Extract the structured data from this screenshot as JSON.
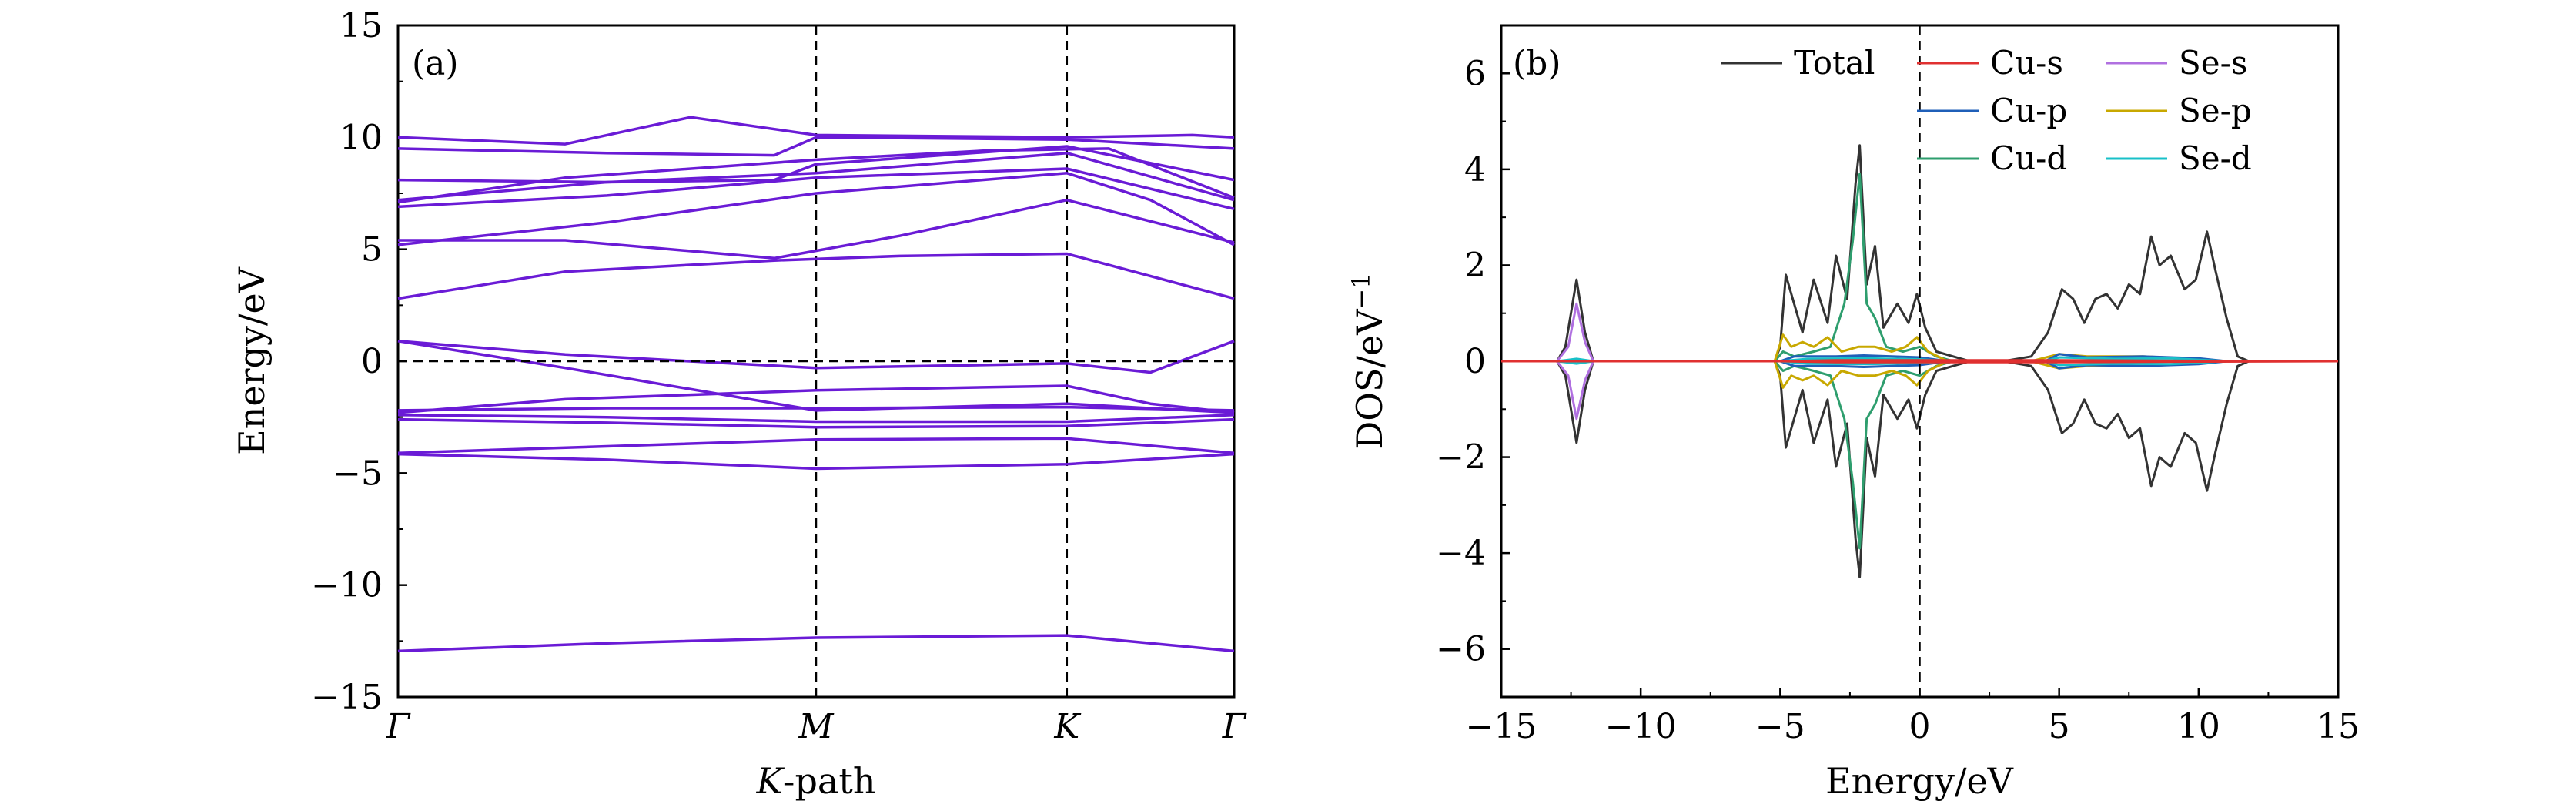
{
  "chart_data": [
    {
      "panel": "(a)",
      "type": "line",
      "title": "",
      "xlabel": "K-path",
      "xlabel_italic": "K",
      "xlabel_rest": "-path",
      "ylabel": "Energy/eV",
      "ylim": [
        -15,
        15
      ],
      "yticks": [
        -15,
        -10,
        -5,
        0,
        5,
        10,
        15
      ],
      "ytick_labels": [
        "−15",
        "−10",
        "−5",
        "0",
        "5",
        "10",
        "15"
      ],
      "kpoints": [
        {
          "label": "Γ",
          "pos": 0.0
        },
        {
          "label": "M",
          "pos": 0.5
        },
        {
          "label": "K",
          "pos": 0.8
        },
        {
          "label": "Γ",
          "pos": 1.0
        }
      ],
      "fermi_level": 0,
      "color": "#6a1bd6",
      "bands": [
        [
          [
            0,
            -12.95
          ],
          [
            0.25,
            -12.6
          ],
          [
            0.5,
            -12.35
          ],
          [
            0.8,
            -12.25
          ],
          [
            0.9,
            -12.6
          ],
          [
            1,
            -12.95
          ]
        ],
        [
          [
            0,
            -4.15
          ],
          [
            0.25,
            -4.4
          ],
          [
            0.5,
            -4.8
          ],
          [
            0.65,
            -4.7
          ],
          [
            0.8,
            -4.6
          ],
          [
            1,
            -4.15
          ]
        ],
        [
          [
            0,
            -4.1
          ],
          [
            0.25,
            -3.8
          ],
          [
            0.5,
            -3.5
          ],
          [
            0.8,
            -3.45
          ],
          [
            1,
            -4.1
          ]
        ],
        [
          [
            0,
            -2.6
          ],
          [
            0.25,
            -2.75
          ],
          [
            0.5,
            -2.95
          ],
          [
            0.8,
            -2.9
          ],
          [
            1,
            -2.6
          ]
        ],
        [
          [
            0,
            -2.4
          ],
          [
            0.25,
            -2.5
          ],
          [
            0.5,
            -2.7
          ],
          [
            0.8,
            -2.7
          ],
          [
            1,
            -2.4
          ]
        ],
        [
          [
            0,
            -2.3
          ],
          [
            0.2,
            -1.7
          ],
          [
            0.5,
            -1.3
          ],
          [
            0.8,
            -1.1
          ],
          [
            0.9,
            -1.9
          ],
          [
            1,
            -2.3
          ]
        ],
        [
          [
            0,
            -2.2
          ],
          [
            0.25,
            -2.1
          ],
          [
            0.5,
            -2.1
          ],
          [
            0.8,
            -2.05
          ],
          [
            1,
            -2.2
          ]
        ],
        [
          [
            0,
            0.9
          ],
          [
            0.2,
            -0.3
          ],
          [
            0.5,
            -2.2
          ],
          [
            0.8,
            -1.9
          ],
          [
            1,
            -2.3
          ]
        ],
        [
          [
            0,
            0.9
          ],
          [
            0.2,
            0.3
          ],
          [
            0.5,
            -0.3
          ],
          [
            0.8,
            -0.1
          ],
          [
            0.9,
            -0.5
          ],
          [
            1,
            0.9
          ]
        ],
        [
          [
            0,
            2.8
          ],
          [
            0.2,
            4.0
          ],
          [
            0.45,
            4.5
          ],
          [
            0.6,
            4.7
          ],
          [
            0.8,
            4.8
          ],
          [
            1,
            2.8
          ]
        ],
        [
          [
            0,
            5.4
          ],
          [
            0.2,
            5.4
          ],
          [
            0.45,
            4.6
          ],
          [
            0.6,
            5.6
          ],
          [
            0.8,
            7.2
          ],
          [
            1,
            5.3
          ]
        ],
        [
          [
            0,
            5.2
          ],
          [
            0.25,
            6.2
          ],
          [
            0.5,
            7.5
          ],
          [
            0.8,
            8.4
          ],
          [
            0.9,
            7.2
          ],
          [
            1,
            5.2
          ]
        ],
        [
          [
            0,
            6.9
          ],
          [
            0.25,
            7.4
          ],
          [
            0.5,
            8.2
          ],
          [
            0.8,
            8.6
          ],
          [
            1,
            6.8
          ]
        ],
        [
          [
            0,
            7.2
          ],
          [
            0.25,
            8.0
          ],
          [
            0.5,
            8.4
          ],
          [
            0.8,
            9.3
          ],
          [
            1,
            7.2
          ]
        ],
        [
          [
            0,
            7.1
          ],
          [
            0.2,
            8.2
          ],
          [
            0.5,
            9.0
          ],
          [
            0.7,
            9.4
          ],
          [
            0.85,
            9.5
          ],
          [
            1,
            7.3
          ]
        ],
        [
          [
            0,
            8.1
          ],
          [
            0.25,
            8.0
          ],
          [
            0.45,
            8.1
          ],
          [
            0.5,
            8.8
          ],
          [
            0.8,
            9.6
          ],
          [
            1,
            8.1
          ]
        ],
        [
          [
            0,
            9.5
          ],
          [
            0.25,
            9.3
          ],
          [
            0.45,
            9.2
          ],
          [
            0.5,
            10.0
          ],
          [
            0.8,
            9.9
          ],
          [
            1,
            9.5
          ]
        ],
        [
          [
            0,
            10.0
          ],
          [
            0.2,
            9.7
          ],
          [
            0.35,
            10.9
          ],
          [
            0.5,
            10.1
          ],
          [
            0.8,
            10.0
          ],
          [
            0.95,
            10.1
          ],
          [
            1,
            10.0
          ]
        ]
      ]
    },
    {
      "panel": "(b)",
      "type": "line",
      "title": "",
      "xlabel": "Energy/eV",
      "ylabel": "DOS/eV",
      "ylabel_sup": "−1",
      "xlim": [
        -15,
        15
      ],
      "ylim": [
        -7,
        7
      ],
      "xticks": [
        -15,
        -10,
        -5,
        0,
        5,
        10,
        15
      ],
      "xtick_labels": [
        "−15",
        "−10",
        "−5",
        "0",
        "5",
        "10",
        "15"
      ],
      "yticks": [
        -6,
        -4,
        -2,
        0,
        2,
        4,
        6
      ],
      "ytick_labels": [
        "−6",
        "−4",
        "−2",
        "0",
        "2",
        "4",
        "6"
      ],
      "fermi_level": 0,
      "legend": [
        {
          "name": "Total",
          "color": "#333333"
        },
        {
          "name": "Cu-s",
          "color": "#e03030"
        },
        {
          "name": "Se-s",
          "color": "#b070e0"
        },
        {
          "name": "Cu-p",
          "color": "#1f5fb8"
        },
        {
          "name": "Se-p",
          "color": "#c8a800"
        },
        {
          "name": "Cu-d",
          "color": "#2e9e6e"
        },
        {
          "name": "Se-d",
          "color": "#18c0c8"
        }
      ],
      "series": [
        {
          "name": "Total",
          "color": "#333333",
          "points": [
            [
              -15,
              0
            ],
            [
              -13,
              0
            ],
            [
              -12.7,
              0.3
            ],
            [
              -12.3,
              1.7
            ],
            [
              -12,
              0.6
            ],
            [
              -11.7,
              0
            ],
            [
              -5.2,
              0
            ],
            [
              -5,
              0.3
            ],
            [
              -4.8,
              1.8
            ],
            [
              -4.5,
              1.2
            ],
            [
              -4.2,
              0.6
            ],
            [
              -3.8,
              1.7
            ],
            [
              -3.3,
              0.8
            ],
            [
              -3,
              2.2
            ],
            [
              -2.6,
              1.3
            ],
            [
              -2.3,
              3.7
            ],
            [
              -2.15,
              4.5
            ],
            [
              -1.9,
              1.6
            ],
            [
              -1.6,
              2.4
            ],
            [
              -1.3,
              0.7
            ],
            [
              -0.8,
              1.2
            ],
            [
              -0.4,
              0.8
            ],
            [
              -0.1,
              1.4
            ],
            [
              0.2,
              0.7
            ],
            [
              0.6,
              0.2
            ],
            [
              1.2,
              0.1
            ],
            [
              1.8,
              0
            ],
            [
              3,
              0
            ],
            [
              4,
              0.1
            ],
            [
              4.6,
              0.6
            ],
            [
              5.1,
              1.5
            ],
            [
              5.5,
              1.3
            ],
            [
              5.9,
              0.8
            ],
            [
              6.3,
              1.3
            ],
            [
              6.7,
              1.4
            ],
            [
              7.1,
              1.1
            ],
            [
              7.5,
              1.6
            ],
            [
              7.9,
              1.4
            ],
            [
              8.3,
              2.6
            ],
            [
              8.6,
              2.0
            ],
            [
              9,
              2.2
            ],
            [
              9.5,
              1.5
            ],
            [
              9.9,
              1.7
            ],
            [
              10.3,
              2.7
            ],
            [
              10.6,
              1.9
            ],
            [
              11,
              0.9
            ],
            [
              11.4,
              0.1
            ],
            [
              11.8,
              0
            ],
            [
              15,
              0
            ]
          ]
        },
        {
          "name": "Se-s",
          "color": "#b070e0",
          "points": [
            [
              -15,
              0
            ],
            [
              -13,
              0
            ],
            [
              -12.6,
              0.3
            ],
            [
              -12.3,
              1.2
            ],
            [
              -12,
              0.4
            ],
            [
              -11.7,
              0
            ],
            [
              15,
              0
            ]
          ]
        },
        {
          "name": "Cu-d",
          "color": "#2e9e6e",
          "points": [
            [
              -15,
              0
            ],
            [
              -5.2,
              0
            ],
            [
              -4.9,
              0.2
            ],
            [
              -4.5,
              0.1
            ],
            [
              -3.8,
              0.2
            ],
            [
              -3.2,
              0.3
            ],
            [
              -2.7,
              1.2
            ],
            [
              -2.4,
              2.5
            ],
            [
              -2.15,
              3.9
            ],
            [
              -1.9,
              1.2
            ],
            [
              -1.6,
              0.9
            ],
            [
              -1.2,
              0.3
            ],
            [
              -0.6,
              0.2
            ],
            [
              0,
              0.3
            ],
            [
              0.6,
              0.1
            ],
            [
              1.2,
              0
            ],
            [
              15,
              0
            ]
          ]
        },
        {
          "name": "Se-p",
          "color": "#c8a800",
          "points": [
            [
              -15,
              0
            ],
            [
              -5.2,
              0
            ],
            [
              -4.9,
              0.55
            ],
            [
              -4.6,
              0.3
            ],
            [
              -4.2,
              0.4
            ],
            [
              -3.8,
              0.3
            ],
            [
              -3.3,
              0.5
            ],
            [
              -2.8,
              0.2
            ],
            [
              -2.2,
              0.3
            ],
            [
              -1.6,
              0.3
            ],
            [
              -1,
              0.2
            ],
            [
              -0.5,
              0.3
            ],
            [
              -0.1,
              0.5
            ],
            [
              0.3,
              0.2
            ],
            [
              1,
              0
            ],
            [
              4,
              0
            ],
            [
              5,
              0.15
            ],
            [
              6,
              0.1
            ],
            [
              8,
              0.1
            ],
            [
              10,
              0.05
            ],
            [
              11,
              0
            ],
            [
              15,
              0
            ]
          ]
        },
        {
          "name": "Cu-p",
          "color": "#1f5fb8",
          "points": [
            [
              -15,
              0
            ],
            [
              -5,
              0
            ],
            [
              -4.5,
              0.1
            ],
            [
              -3,
              0.1
            ],
            [
              -2,
              0.12
            ],
            [
              -1,
              0.1
            ],
            [
              0,
              0.08
            ],
            [
              1,
              0
            ],
            [
              4.5,
              0
            ],
            [
              5,
              0.15
            ],
            [
              6,
              0.08
            ],
            [
              8,
              0.1
            ],
            [
              10,
              0.06
            ],
            [
              11,
              0
            ],
            [
              15,
              0
            ]
          ]
        },
        {
          "name": "Se-d",
          "color": "#18c0c8",
          "points": [
            [
              -15,
              0
            ],
            [
              -13,
              0
            ],
            [
              -12.3,
              0.05
            ],
            [
              -11.7,
              0
            ],
            [
              -5,
              0
            ],
            [
              -4,
              0.05
            ],
            [
              -2,
              0.06
            ],
            [
              0,
              0.04
            ],
            [
              1,
              0
            ],
            [
              4.5,
              0
            ],
            [
              5,
              0.08
            ],
            [
              7,
              0.05
            ],
            [
              9,
              0.06
            ],
            [
              11,
              0
            ],
            [
              15,
              0
            ]
          ]
        },
        {
          "name": "Cu-s",
          "color": "#e03030",
          "points": [
            [
              -15,
              0
            ],
            [
              -5,
              0
            ],
            [
              -3,
              0.02
            ],
            [
              0,
              0.02
            ],
            [
              5,
              0.02
            ],
            [
              15,
              0
            ]
          ]
        }
      ]
    }
  ]
}
